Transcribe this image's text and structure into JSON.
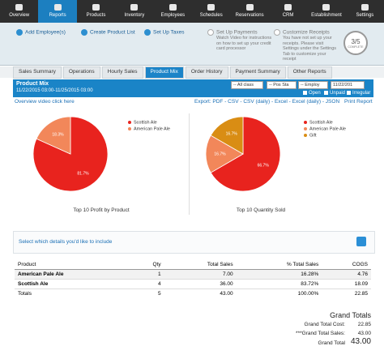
{
  "nav": {
    "items": [
      "Overview",
      "Reports",
      "Products",
      "Inventory",
      "Employees",
      "Schedules",
      "Reservations",
      "CRM",
      "Establishment",
      "Settings"
    ]
  },
  "setup": {
    "steps": [
      {
        "label": "Add Employee(s)"
      },
      {
        "label": "Create Product List"
      },
      {
        "label": "Set Up Taxes"
      },
      {
        "label": "Set Up Payments",
        "note": "Watch Video for instructions on how to set up your credit card processor"
      },
      {
        "label": "Customize Receipts",
        "note": "You have not set up your receipts. Please visit Settings under the Settings Tab to customize your receipt"
      }
    ],
    "progress": "3/5",
    "progress_label": "COMPLETE"
  },
  "tabs": [
    "Sales Summary",
    "Operations",
    "Hourly Sales",
    "Product Mix",
    "Order History",
    "Payment Summary",
    "Other Reports"
  ],
  "report": {
    "title": "Product Mix",
    "range": "11/22/2015 03:00-11/25/2015 03:00",
    "filters": [
      "-- All class",
      "-- Pos Sta",
      "-- Employ",
      "11/22/201"
    ],
    "checks": [
      "Open",
      "Unpaid",
      "Irregular"
    ],
    "video": "Overview video click here",
    "export": "Export: PDF - CSV - CSV (daily) - Excel - Excel (daily) - JSON",
    "print": "Print Report",
    "details": "Select which details you'd like to include"
  },
  "chart_data": [
    {
      "type": "pie",
      "title": "Top 10 Profit by Product",
      "categories": [
        "Scottish Ale",
        "American Pale Ale"
      ],
      "values": [
        81.7,
        18.3
      ],
      "value_labels": [
        "81.7%",
        "18.3%"
      ],
      "colors": [
        "#e8231e",
        "#f2875a"
      ]
    },
    {
      "type": "pie",
      "title": "Top 10 Quantity Sold",
      "categories": [
        "Scottish Ale",
        "American Pale Ale",
        "Gift"
      ],
      "values": [
        66.7,
        16.7,
        16.7
      ],
      "value_labels": [
        "66.7%",
        "16.7%",
        "16.7%"
      ],
      "colors": [
        "#e8231e",
        "#f2875a",
        "#d98d14"
      ]
    }
  ],
  "table": {
    "header": [
      "Product",
      "Qty",
      "Total Sales",
      "% Total Sales",
      "COGS"
    ],
    "rows": [
      [
        "American Pale Ale",
        "1",
        "7.00",
        "16.28%",
        "4.76"
      ],
      [
        "Scottish Ale",
        "4",
        "36.00",
        "83.72%",
        "18.09"
      ]
    ],
    "totals": [
      "Totals",
      "5",
      "43.00",
      "100.00%",
      "22.85"
    ]
  },
  "grand": {
    "title": "Grand Totals",
    "cost_label": "Grand Total Cost:",
    "cost": "22.85",
    "sales_label": "***Grand Total Sales:",
    "sales": "43.00",
    "total_label": "Grand Total",
    "total": "43.00"
  }
}
